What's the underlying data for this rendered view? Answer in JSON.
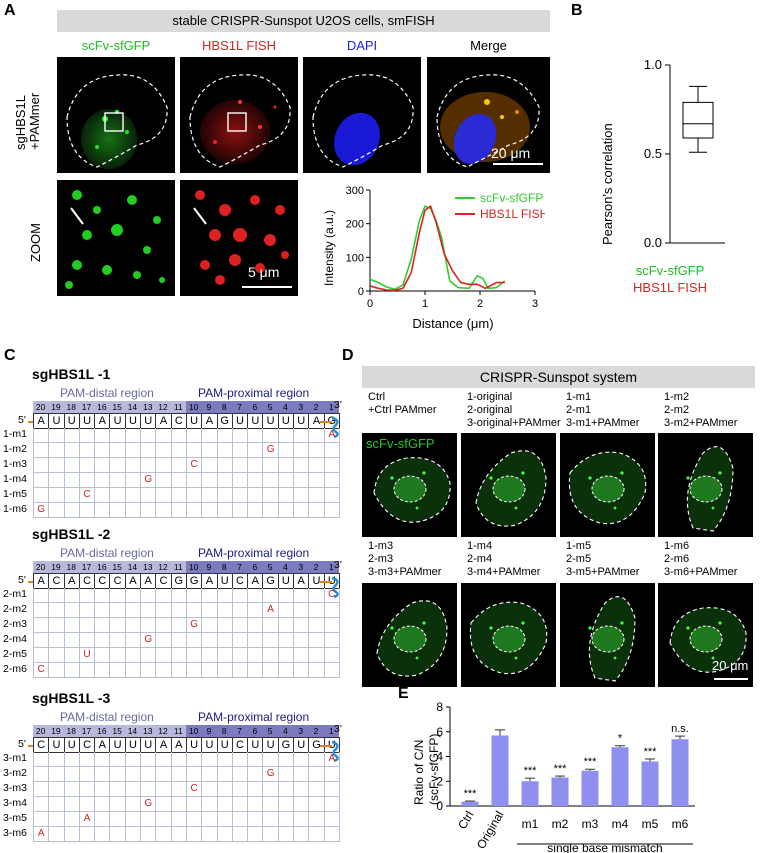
{
  "panel_a": {
    "label": "A",
    "banner": "stable CRISPR-Sunspot U2OS cells, smFISH",
    "channels": [
      "scFv-sfGFP",
      "HBS1L FISH",
      "DAPI",
      "Merge"
    ],
    "row1_label": [
      "sgHBS1L",
      "+PAMmer"
    ],
    "row2_label": "ZOOM",
    "scale_main": "20 μm",
    "scale_zoom": "5 μm"
  },
  "line_profile": {
    "ylabel": "Intensity (a.u.)",
    "xlabel": "Distance (μm)",
    "yticks": [
      "0",
      "100",
      "200",
      "300"
    ],
    "xticks": [
      "0",
      "1",
      "2",
      "3"
    ],
    "legend": [
      "scFv-sfGFP",
      "HBS1L FISH"
    ],
    "colors": {
      "green": "#2ecc2e",
      "red": "#dd2222"
    }
  },
  "chart_data": [
    {
      "type": "line",
      "xlabel": "Distance (μm)",
      "ylabel": "Intensity (a.u.)",
      "xlim": [
        0,
        3
      ],
      "ylim": [
        0,
        300
      ],
      "series": [
        {
          "name": "scFv-sfGFP",
          "x": [
            0,
            0.15,
            0.3,
            0.45,
            0.6,
            0.75,
            0.9,
            1.0,
            1.1,
            1.2,
            1.3,
            1.45,
            1.6,
            1.8,
            1.95,
            2.05,
            2.15,
            2.3,
            2.45
          ],
          "y": [
            35,
            25,
            12,
            5,
            18,
            95,
            210,
            252,
            245,
            210,
            160,
            30,
            10,
            8,
            45,
            38,
            8,
            10,
            30
          ]
        },
        {
          "name": "HBS1L FISH",
          "x": [
            0,
            0.15,
            0.3,
            0.45,
            0.6,
            0.75,
            0.9,
            1.0,
            1.1,
            1.2,
            1.35,
            1.5,
            1.65,
            1.8,
            1.95,
            2.1,
            2.3,
            2.45
          ],
          "y": [
            15,
            8,
            3,
            2,
            8,
            55,
            175,
            240,
            252,
            205,
            110,
            60,
            25,
            20,
            20,
            8,
            25,
            25
          ]
        }
      ]
    },
    {
      "type": "box",
      "ylabel": "Pearson's correlation",
      "ylim": [
        0,
        1
      ],
      "yticks": [
        "0.0",
        "0.5",
        "1.0"
      ],
      "box": {
        "whisker_low": 0.51,
        "q1": 0.59,
        "median": 0.67,
        "q3": 0.79,
        "whisker_high": 0.88
      },
      "category_lines": [
        "scFv-sfGFP",
        "HBS1L FISH"
      ]
    },
    {
      "type": "bar",
      "ylabel": "Ratio of C/N\n(scFv-sfGFP)",
      "ylim": [
        0,
        8
      ],
      "yticks": [
        "0",
        "2",
        "4",
        "6",
        "8"
      ],
      "categories": [
        "Ctrl",
        "Original",
        "m1",
        "m2",
        "m3",
        "m4",
        "m5",
        "m6"
      ],
      "values": [
        0.35,
        5.7,
        2.0,
        2.3,
        2.85,
        4.75,
        3.6,
        5.4
      ],
      "errors": [
        0.05,
        0.45,
        0.25,
        0.12,
        0.12,
        0.12,
        0.2,
        0.25
      ],
      "significance": [
        "***",
        "",
        "***",
        "***",
        "***",
        "*",
        "***",
        "n.s."
      ],
      "group_label": "single base mismatch",
      "color": "#8f8fef"
    }
  ],
  "panel_b": {
    "label": "B"
  },
  "panel_c": {
    "label": "C",
    "positions": [
      "20",
      "19",
      "18",
      "17",
      "16",
      "15",
      "14",
      "13",
      "12",
      "11",
      "10",
      "9",
      "8",
      "7",
      "6",
      "5",
      "4",
      "3",
      "2",
      "1"
    ],
    "distal": "PAM-distal region",
    "proximal": "PAM-proximal region",
    "five": "5'",
    "three": "3'",
    "guides": [
      {
        "title": "sgHBS1L -1",
        "seq": [
          "A",
          "U",
          "U",
          "U",
          "A",
          "U",
          "U",
          "U",
          "A",
          "C",
          "U",
          "A",
          "G",
          "U",
          "U",
          "U",
          "U",
          "U",
          "A",
          "G"
        ],
        "rows": [
          "1-m1",
          "1-m2",
          "1-m3",
          "1-m4",
          "1-m5",
          "1-m6"
        ],
        "mutations": [
          [
            19,
            "A"
          ],
          [
            15,
            "G"
          ],
          [
            10,
            "C"
          ],
          [
            7,
            "G"
          ],
          [
            3,
            "C"
          ],
          [
            0,
            "G"
          ]
        ]
      },
      {
        "title": "sgHBS1L -2",
        "seq": [
          "A",
          "C",
          "A",
          "C",
          "C",
          "C",
          "A",
          "A",
          "C",
          "G",
          "G",
          "A",
          "U",
          "C",
          "A",
          "G",
          "U",
          "A",
          "U",
          "U"
        ],
        "rows": [
          "2-m1",
          "2-m2",
          "2-m3",
          "2-m4",
          "2-m5",
          "2-m6"
        ],
        "mutations": [
          [
            19,
            "C"
          ],
          [
            15,
            "A"
          ],
          [
            10,
            "G"
          ],
          [
            7,
            "G"
          ],
          [
            3,
            "U"
          ],
          [
            0,
            "C"
          ]
        ]
      },
      {
        "title": "sgHBS1L -3",
        "seq": [
          "C",
          "U",
          "U",
          "C",
          "A",
          "U",
          "U",
          "U",
          "A",
          "A",
          "U",
          "U",
          "U",
          "C",
          "U",
          "U",
          "G",
          "U",
          "G",
          "U"
        ],
        "rows": [
          "3-m1",
          "3-m2",
          "3-m3",
          "3-m4",
          "3-m5",
          "3-m6"
        ],
        "mutations": [
          [
            19,
            "A"
          ],
          [
            15,
            "G"
          ],
          [
            10,
            "C"
          ],
          [
            7,
            "G"
          ],
          [
            3,
            "A"
          ],
          [
            0,
            "A"
          ]
        ]
      }
    ]
  },
  "panel_d": {
    "label": "D",
    "banner": "CRISPR-Sunspot system",
    "channel": "scFv-sfGFP",
    "scale": "20 μm",
    "top_labels": [
      "Ctrl\n+Ctrl PAMmer",
      "1-original\n2-original\n3-original+PAMmer",
      "1-m1\n2-m1\n3-m1+PAMmer",
      "1-m2\n2-m2\n3-m2+PAMmer"
    ],
    "bottom_labels": [
      "1-m3\n2-m3\n3-m3+PAMmer",
      "1-m4\n2-m4\n3-m4+PAMmer",
      "1-m5\n2-m5\n3-m5+PAMmer",
      "1-m6\n2-m6\n3-m6+PAMmer"
    ]
  },
  "panel_e": {
    "label": "E"
  }
}
